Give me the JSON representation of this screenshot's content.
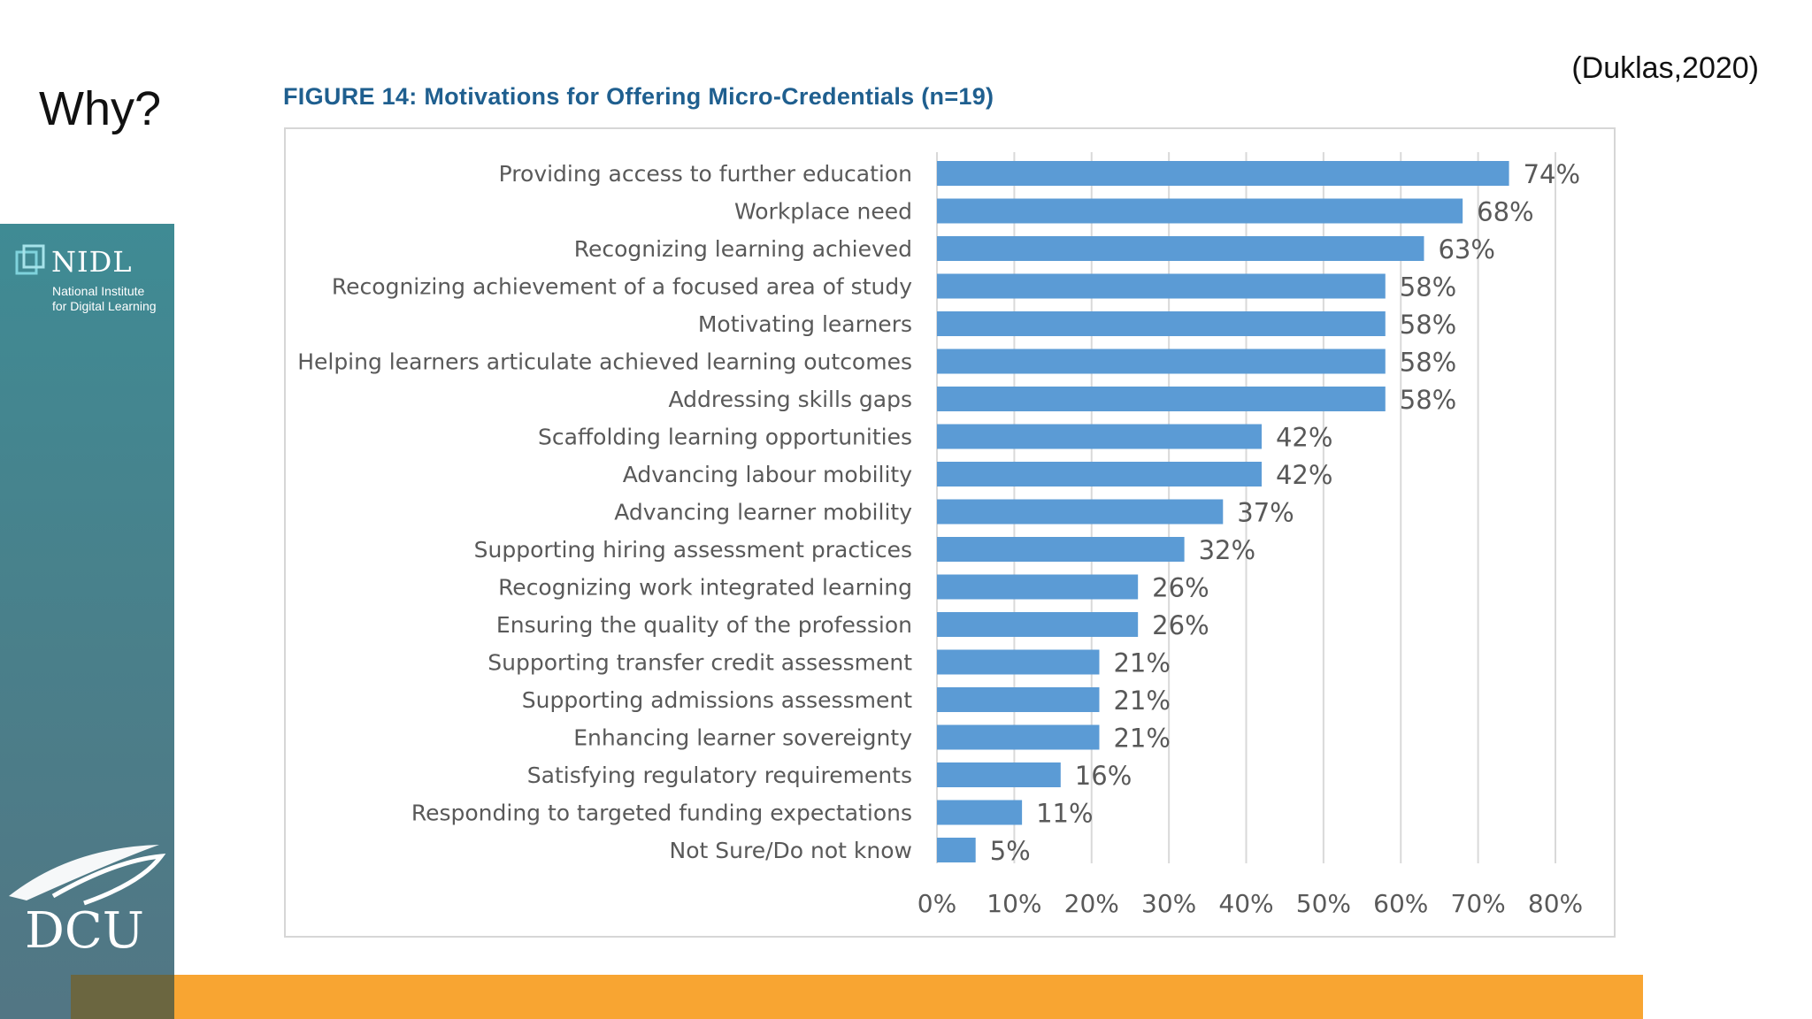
{
  "slide": {
    "title": "Why?",
    "citation": "(Duklas,2020)"
  },
  "sidebar": {
    "logo_name": "NIDL",
    "logo_sub_line1": "National Institute",
    "logo_sub_line2": "for Digital Learning",
    "university_logo": "DCU"
  },
  "colors": {
    "bar": "#5b9bd5",
    "sidebar": "#4a8490",
    "accent_bar": "#f8a532",
    "title_blue": "#1f5f8f"
  },
  "chart_data": {
    "type": "bar",
    "orientation": "horizontal",
    "title": "FIGURE 14: Motivations for Offering Micro-Credentials (n=19)",
    "categories": [
      "Providing access to further education",
      "Workplace need",
      "Recognizing learning achieved",
      "Recognizing achievement of a focused area of study",
      "Motivating learners",
      "Helping learners articulate achieved learning outcomes",
      "Addressing skills gaps",
      "Scaffolding learning opportunities",
      "Advancing labour mobility",
      "Advancing learner mobility",
      "Supporting hiring assessment practices",
      "Recognizing work integrated learning",
      "Ensuring the quality of the profession",
      "Supporting transfer credit assessment",
      "Supporting admissions assessment",
      "Enhancing learner sovereignty",
      "Satisfying regulatory requirements",
      "Responding to targeted funding expectations",
      "Not Sure/Do not know"
    ],
    "values": [
      74,
      68,
      63,
      58,
      58,
      58,
      58,
      42,
      42,
      37,
      32,
      26,
      26,
      21,
      21,
      21,
      16,
      11,
      5
    ],
    "value_labels": [
      "74%",
      "68%",
      "63%",
      "58%",
      "58%",
      "58%",
      "58%",
      "42%",
      "42%",
      "37%",
      "32%",
      "26%",
      "26%",
      "21%",
      "21%",
      "21%",
      "16%",
      "11%",
      "5%"
    ],
    "xlim": [
      0,
      80
    ],
    "x_ticks": [
      0,
      10,
      20,
      30,
      40,
      50,
      60,
      70,
      80
    ],
    "x_tick_labels": [
      "0%",
      "10%",
      "20%",
      "30%",
      "40%",
      "50%",
      "60%",
      "70%",
      "80%"
    ],
    "xlabel": "",
    "ylabel": "",
    "grid": "vertical"
  }
}
